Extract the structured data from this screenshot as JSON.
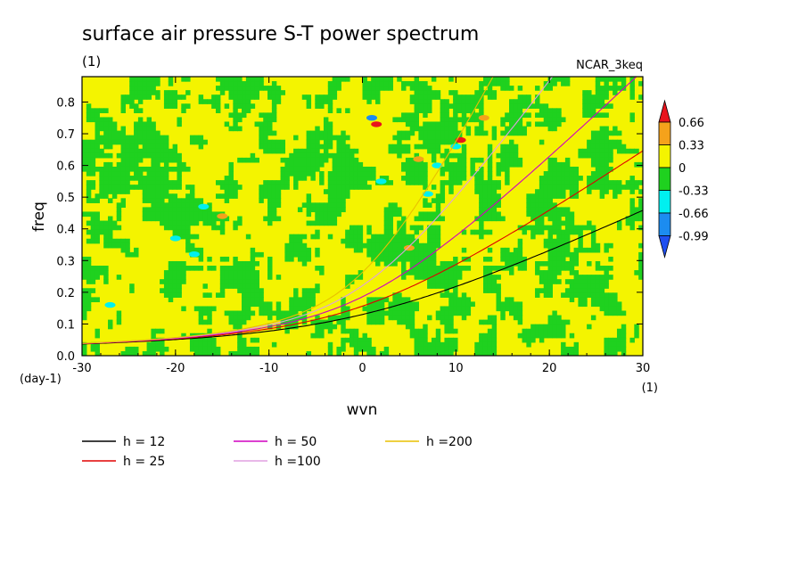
{
  "chart_data": {
    "type": "heatmap",
    "title": "surface air pressure S-T power spectrum",
    "subtitle": "(1)",
    "annotation": "NCAR_3keq",
    "xlabel": "wvn",
    "ylabel": "freq",
    "x_unit": "(1)",
    "y_unit": "(day-1)",
    "xlim": [
      -30,
      30
    ],
    "ylim": [
      0,
      0.88
    ],
    "x_ticks": [
      "-30",
      "-20",
      "-10",
      "0",
      "10",
      "20",
      "30"
    ],
    "x_tick_values": [
      -30,
      -20,
      -10,
      0,
      10,
      20,
      30
    ],
    "y_ticks": [
      "0.0",
      "0.1",
      "0.2",
      "0.3",
      "0.4",
      "0.5",
      "0.6",
      "0.7",
      "0.8"
    ],
    "y_tick_values": [
      0,
      0.1,
      0.2,
      0.3,
      0.4,
      0.5,
      0.6,
      0.7,
      0.8
    ],
    "colorbar": {
      "levels": [
        "0.66",
        "0.33",
        "0",
        "-0.33",
        "-0.66",
        "-0.99"
      ],
      "colors": [
        "#e8141c",
        "#f5a21b",
        "#f4f400",
        "#1fd11f",
        "#00f0f0",
        "#1c8cf0",
        "#1f4ff0"
      ],
      "extend": "both"
    },
    "field_colors": {
      "positive": "#f4f400",
      "negative": "#1fd11f",
      "strong_negative": "#00f0f0",
      "very_negative": "#1c8cf0",
      "strong_positive": "#f5a21b",
      "very_positive": "#e8141c"
    },
    "series": [
      {
        "name": "h = 12",
        "equivalent_depth": 12,
        "color": "#000000"
      },
      {
        "name": "h = 25",
        "equivalent_depth": 25,
        "color": "#e00000"
      },
      {
        "name": "h = 50",
        "equivalent_depth": 50,
        "color": "#d000c0"
      },
      {
        "name": "h =100",
        "equivalent_depth": 100,
        "color": "#e0a0e0"
      },
      {
        "name": "h =200",
        "equivalent_depth": 200,
        "color": "#e8c000"
      }
    ]
  }
}
